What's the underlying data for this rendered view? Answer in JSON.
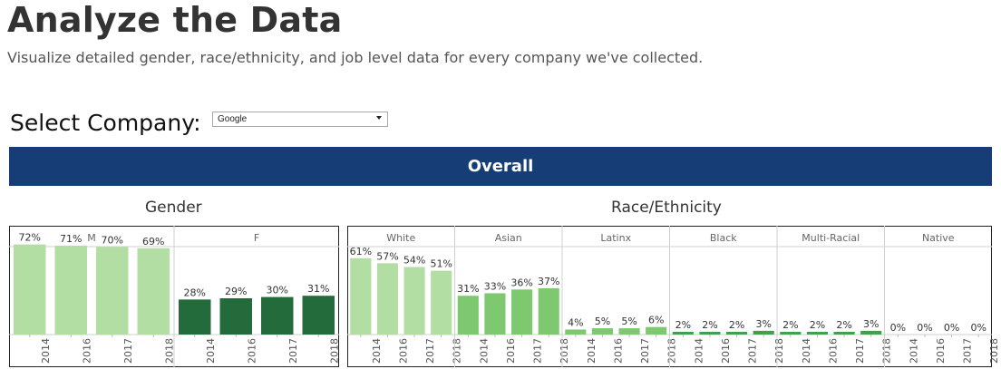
{
  "page": {
    "title": "Analyze the Data",
    "subtitle": "Visualize detailed gender, race/ethnicity, and job level data for every company we've collected.",
    "select_label": "Select Company:",
    "company": "Google",
    "banner": "Overall"
  },
  "colors": {
    "light_green": "#b3dea3",
    "mid_green": "#7ec86f",
    "dark_green": "#246b3b",
    "banner": "#163d75"
  },
  "chart_data": [
    {
      "type": "bar",
      "title": "Gender",
      "ylim": [
        0,
        100
      ],
      "years": [
        "2014",
        "2016",
        "2017",
        "2018"
      ],
      "groups": [
        {
          "name": "M",
          "values": [
            72,
            71,
            70,
            69
          ],
          "color": "#b3dea3"
        },
        {
          "name": "F",
          "values": [
            28,
            29,
            30,
            31
          ],
          "color": "#246b3b"
        }
      ]
    },
    {
      "type": "bar",
      "title": "Race/Ethnicity",
      "ylim": [
        0,
        100
      ],
      "years": [
        "2014",
        "2016",
        "2017",
        "2018"
      ],
      "groups": [
        {
          "name": "White",
          "values": [
            61,
            57,
            54,
            51
          ],
          "color": "#b3dea3"
        },
        {
          "name": "Asian",
          "values": [
            31,
            33,
            36,
            37
          ],
          "color": "#7ec86f"
        },
        {
          "name": "Latinx",
          "values": [
            4,
            5,
            5,
            6
          ],
          "color": "#7ec86f"
        },
        {
          "name": "Black",
          "values": [
            2,
            2,
            2,
            3
          ],
          "color": "#41a04c"
        },
        {
          "name": "Multi-Racial",
          "values": [
            2,
            2,
            2,
            3
          ],
          "color": "#41a04c"
        },
        {
          "name": "Native",
          "values": [
            0,
            0,
            0,
            0
          ],
          "color": "#41a04c"
        }
      ]
    }
  ]
}
